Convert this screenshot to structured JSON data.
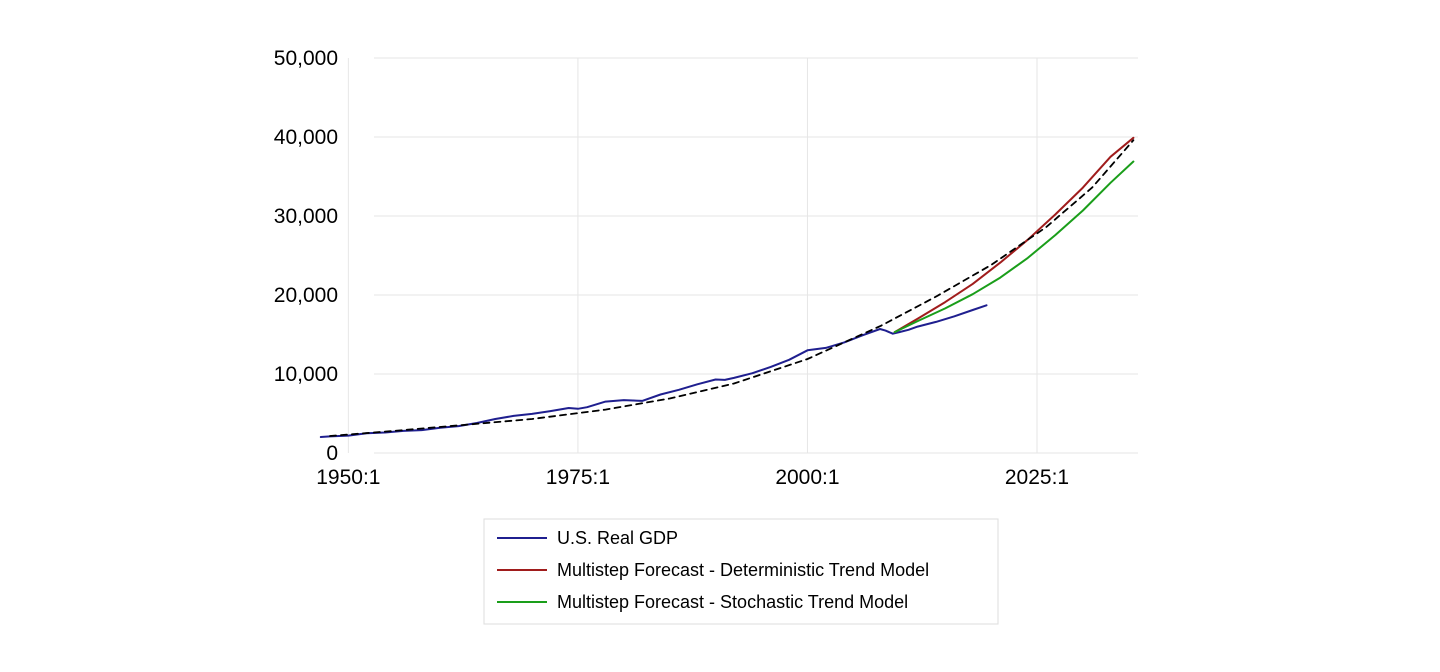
{
  "chart_data": {
    "type": "line",
    "title": "",
    "xlabel": "",
    "ylabel": "",
    "grid": true,
    "legend_position": "bottom-center",
    "xlim": [
      1948,
      2036
    ],
    "ylim": [
      0,
      50000
    ],
    "x_ticks": [
      {
        "value": 1950,
        "label": "1950:1"
      },
      {
        "value": 1975,
        "label": "1975:1"
      },
      {
        "value": 2000,
        "label": "2000:1"
      },
      {
        "value": 2025,
        "label": "2025:1"
      }
    ],
    "y_ticks": [
      {
        "value": 0,
        "label": "0"
      },
      {
        "value": 10000,
        "label": "10,000"
      },
      {
        "value": 20000,
        "label": "20,000"
      },
      {
        "value": 30000,
        "label": "30,000"
      },
      {
        "value": 40000,
        "label": "40,000"
      },
      {
        "value": 50000,
        "label": "50,000"
      }
    ],
    "series": [
      {
        "name": "U.S. Real GDP",
        "color": "#1f1f8f",
        "style": "solid",
        "in_legend": true,
        "x": [
          1947,
          1948,
          1950,
          1952,
          1954,
          1956,
          1958,
          1960,
          1962,
          1964,
          1966,
          1968,
          1970,
          1972,
          1974,
          1975,
          1976,
          1978,
          1980,
          1982,
          1984,
          1986,
          1988,
          1990,
          1991,
          1992,
          1994,
          1996,
          1998,
          2000,
          2002,
          2004,
          2006,
          2007.9,
          2008.5,
          2009.3,
          2010,
          2011,
          2012,
          2014,
          2016,
          2018,
          2019.5
        ],
        "y": [
          2030,
          2100,
          2200,
          2500,
          2600,
          2800,
          2900,
          3200,
          3400,
          3800,
          4300,
          4700,
          4950,
          5300,
          5700,
          5600,
          5800,
          6500,
          6700,
          6600,
          7400,
          8000,
          8700,
          9300,
          9250,
          9500,
          10100,
          10900,
          11800,
          13000,
          13300,
          14000,
          14900,
          15700,
          15500,
          15100,
          15300,
          15600,
          16000,
          16600,
          17300,
          18100,
          18700
        ]
      },
      {
        "name": "Multistep Forecast - Deterministic Trend Model",
        "color": "#a01c1c",
        "style": "solid",
        "in_legend": true,
        "x": [
          2009.5,
          2012,
          2015,
          2018,
          2021,
          2024,
          2027,
          2030,
          2033,
          2035.5
        ],
        "y": [
          15300,
          17000,
          19100,
          21400,
          24100,
          27000,
          30200,
          33600,
          37500,
          39900
        ]
      },
      {
        "name": "Multistep Forecast - Stochastic Trend Model",
        "color": "#1a9e1a",
        "style": "solid",
        "in_legend": true,
        "x": [
          2009.5,
          2012,
          2015,
          2018,
          2021,
          2024,
          2027,
          2030,
          2033,
          2035.5
        ],
        "y": [
          15300,
          16700,
          18300,
          20100,
          22200,
          24700,
          27600,
          30700,
          34200,
          36900
        ]
      },
      {
        "name": "Trend",
        "color": "#000000",
        "style": "dashed",
        "in_legend": false,
        "x": [
          1948,
          1955,
          1962,
          1970,
          1978,
          1985,
          1992,
          2000,
          2008,
          2014,
          2020,
          2026,
          2031,
          2035.5
        ],
        "y": [
          2150,
          2800,
          3500,
          4300,
          5500,
          6900,
          8800,
          11900,
          16100,
          19800,
          23800,
          28600,
          33600,
          39600
        ]
      }
    ]
  }
}
